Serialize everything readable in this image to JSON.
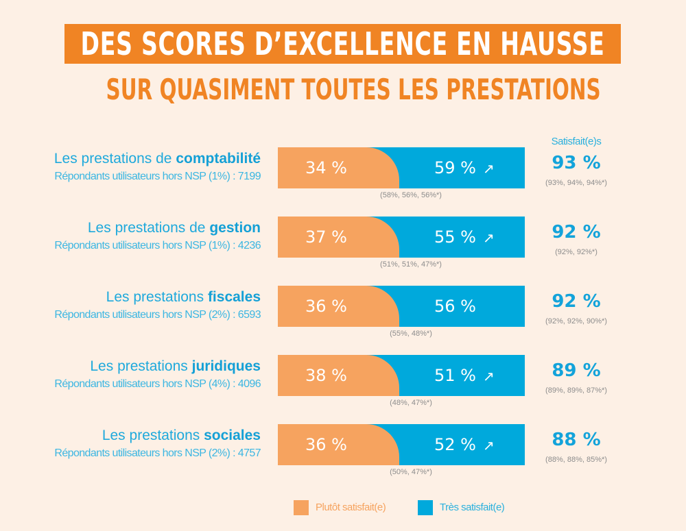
{
  "header": {
    "title": "DES SCORES D’EXCELLENCE EN HAUSSE",
    "subtitle": "SUR QUASIMENT TOUTES LES PRESTATIONS"
  },
  "column_header": "Satisfait(e)s",
  "colors": {
    "title_bg": "#f08424",
    "plutot": "#f6a35f",
    "tres": "#00a9dc",
    "background": "#fdf0e5"
  },
  "legend": {
    "plutot_label": "Plutôt satisfait(e)",
    "tres_label": "Très satisfait(e)"
  },
  "rows": [
    {
      "label_prefix": "Les prestations de ",
      "label_bold": "comptabilité",
      "respondents": "Répondants utilisateurs hors NSP (1%) : 7199",
      "plutot": "34 %",
      "tres": "59 %",
      "trend_icon": "↗",
      "tres_previous": "(58%, 56%, 56%*)",
      "total": "93 %",
      "total_previous": "(93%, 94%, 94%*)"
    },
    {
      "label_prefix": "Les prestations de ",
      "label_bold": "gestion",
      "respondents": "Répondants utilisateurs hors NSP (1%) : 4236",
      "plutot": "37 %",
      "tres": "55 %",
      "trend_icon": "↗",
      "tres_previous": "(51%, 51%, 47%*)",
      "total": "92 %",
      "total_previous": "(92%, 92%*)"
    },
    {
      "label_prefix": "Les prestations ",
      "label_bold": "fiscales",
      "respondents": "Répondants utilisateurs hors NSP (2%) : 6593",
      "plutot": "36 %",
      "tres": "56 %",
      "trend_icon": "",
      "tres_previous": "(55%, 48%*)",
      "total": "92 %",
      "total_previous": "(92%, 92%, 90%*)"
    },
    {
      "label_prefix": "Les prestations ",
      "label_bold": "juridiques",
      "respondents": "Répondants utilisateurs hors NSP (4%) : 4096",
      "plutot": "38 %",
      "tres": "51 %",
      "trend_icon": "↗",
      "tres_previous": "(48%, 47%*)",
      "total": "89 %",
      "total_previous": "(89%, 89%, 87%*)"
    },
    {
      "label_prefix": "Les prestations ",
      "label_bold": "sociales",
      "respondents": "Répondants utilisateurs hors NSP (2%) : 4757",
      "plutot": "36 %",
      "tres": "52 %",
      "trend_icon": "↗",
      "tres_previous": "(50%, 47%*)",
      "total": "88 %",
      "total_previous": "(88%, 88%, 85%*)"
    }
  ],
  "chart_data": {
    "type": "bar",
    "stacked": true,
    "orientation": "horizontal",
    "title": "DES SCORES D’EXCELLENCE EN HAUSSE",
    "subtitle": "SUR QUASIMENT TOUTES LES PRESTATIONS",
    "categories": [
      "comptabilité",
      "gestion",
      "fiscales",
      "juridiques",
      "sociales"
    ],
    "series": [
      {
        "name": "Plutôt satisfait(e)",
        "values": [
          34,
          37,
          36,
          38,
          36
        ]
      },
      {
        "name": "Très satisfait(e)",
        "values": [
          59,
          55,
          56,
          51,
          52
        ]
      }
    ],
    "totals": [
      93,
      92,
      92,
      89,
      88
    ],
    "tres_satisfait_trend_up": [
      true,
      true,
      false,
      true,
      true
    ],
    "legend_position": "bottom",
    "xlabel": "",
    "ylabel": ""
  }
}
